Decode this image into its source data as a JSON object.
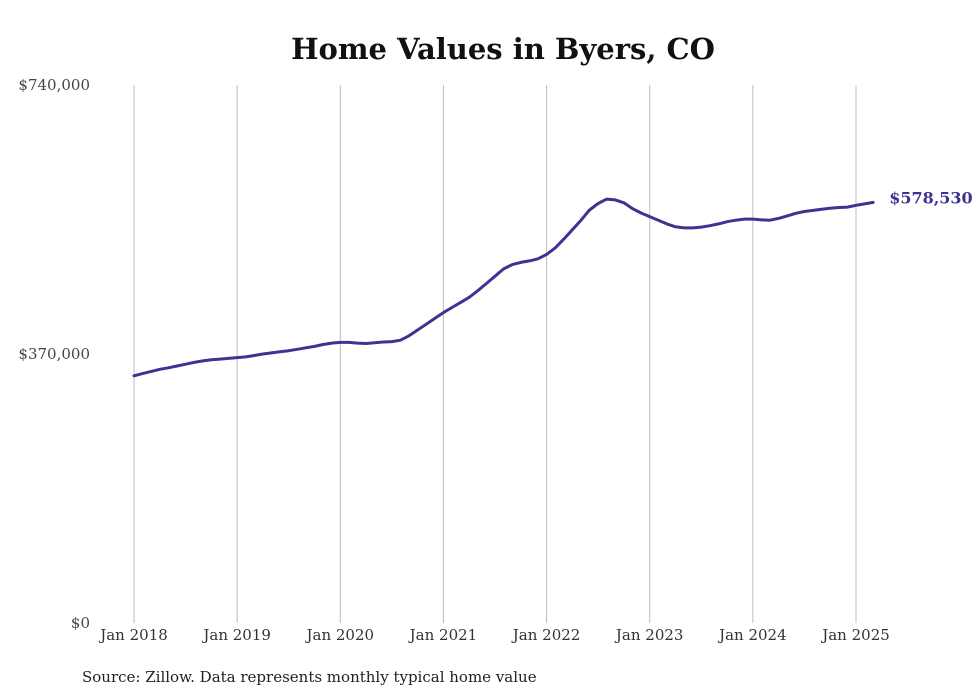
{
  "chart_data": {
    "type": "line",
    "title": "Home Values in Byers, CO",
    "xlabel": "",
    "ylabel": "",
    "y_ticks": [
      {
        "value": 0,
        "label": "$0"
      },
      {
        "value": 370000,
        "label": "$370,000"
      },
      {
        "value": 740000,
        "label": "$740,000"
      }
    ],
    "x_ticks": [
      {
        "value": "2018-01",
        "label": "Jan 2018"
      },
      {
        "value": "2019-01",
        "label": "Jan 2019"
      },
      {
        "value": "2020-01",
        "label": "Jan 2020"
      },
      {
        "value": "2021-01",
        "label": "Jan 2021"
      },
      {
        "value": "2022-01",
        "label": "Jan 2022"
      },
      {
        "value": "2023-01",
        "label": "Jan 2023"
      },
      {
        "value": "2024-01",
        "label": "Jan 2024"
      },
      {
        "value": "2025-01",
        "label": "Jan 2025"
      }
    ],
    "xlim": [
      "2018-01",
      "2025-03"
    ],
    "ylim": [
      0,
      740000
    ],
    "grid": "vertical",
    "legend": "none",
    "series": [
      {
        "color": "#3b3591",
        "end_label": "$578,530",
        "points": [
          [
            "2018-01",
            340000
          ],
          [
            "2018-02",
            343000
          ],
          [
            "2018-03",
            346000
          ],
          [
            "2018-04",
            349000
          ],
          [
            "2018-05",
            351000
          ],
          [
            "2018-06",
            353500
          ],
          [
            "2018-07",
            356000
          ],
          [
            "2018-08",
            358500
          ],
          [
            "2018-09",
            360500
          ],
          [
            "2018-10",
            362000
          ],
          [
            "2018-11",
            363000
          ],
          [
            "2018-12",
            364000
          ],
          [
            "2019-01",
            365000
          ],
          [
            "2019-02",
            366000
          ],
          [
            "2019-03",
            368000
          ],
          [
            "2019-04",
            370000
          ],
          [
            "2019-05",
            371500
          ],
          [
            "2019-06",
            373000
          ],
          [
            "2019-07",
            374500
          ],
          [
            "2019-08",
            376500
          ],
          [
            "2019-09",
            378500
          ],
          [
            "2019-10",
            380500
          ],
          [
            "2019-11",
            383000
          ],
          [
            "2019-12",
            385000
          ],
          [
            "2020-01",
            386000
          ],
          [
            "2020-02",
            386000
          ],
          [
            "2020-03",
            385000
          ],
          [
            "2020-04",
            384500
          ],
          [
            "2020-05",
            385500
          ],
          [
            "2020-06",
            386500
          ],
          [
            "2020-07",
            387000
          ],
          [
            "2020-08",
            389000
          ],
          [
            "2020-09",
            395000
          ],
          [
            "2020-10",
            403000
          ],
          [
            "2020-11",
            411000
          ],
          [
            "2020-12",
            419000
          ],
          [
            "2021-01",
            427000
          ],
          [
            "2021-02",
            434000
          ],
          [
            "2021-03",
            441000
          ],
          [
            "2021-04",
            448000
          ],
          [
            "2021-05",
            457000
          ],
          [
            "2021-06",
            467000
          ],
          [
            "2021-07",
            477000
          ],
          [
            "2021-08",
            487000
          ],
          [
            "2021-09",
            493000
          ],
          [
            "2021-10",
            496000
          ],
          [
            "2021-11",
            498000
          ],
          [
            "2021-12",
            501000
          ],
          [
            "2022-01",
            507000
          ],
          [
            "2022-02",
            516000
          ],
          [
            "2022-03",
            528000
          ],
          [
            "2022-04",
            541000
          ],
          [
            "2022-05",
            554000
          ],
          [
            "2022-06",
            568000
          ],
          [
            "2022-07",
            577000
          ],
          [
            "2022-08",
            583000
          ],
          [
            "2022-09",
            582000
          ],
          [
            "2022-10",
            578000
          ],
          [
            "2022-11",
            570000
          ],
          [
            "2022-12",
            564000
          ],
          [
            "2023-01",
            559000
          ],
          [
            "2023-02",
            554000
          ],
          [
            "2023-03",
            549000
          ],
          [
            "2023-04",
            545000
          ],
          [
            "2023-05",
            543500
          ],
          [
            "2023-06",
            543500
          ],
          [
            "2023-07",
            544500
          ],
          [
            "2023-08",
            546500
          ],
          [
            "2023-09",
            549000
          ],
          [
            "2023-10",
            552000
          ],
          [
            "2023-11",
            554000
          ],
          [
            "2023-12",
            555500
          ],
          [
            "2024-01",
            555500
          ],
          [
            "2024-02",
            554500
          ],
          [
            "2024-03",
            554000
          ],
          [
            "2024-04",
            556500
          ],
          [
            "2024-05",
            560000
          ],
          [
            "2024-06",
            563500
          ],
          [
            "2024-07",
            566000
          ],
          [
            "2024-08",
            567500
          ],
          [
            "2024-09",
            569000
          ],
          [
            "2024-10",
            570500
          ],
          [
            "2024-11",
            571500
          ],
          [
            "2024-12",
            572000
          ],
          [
            "2025-01",
            574500
          ],
          [
            "2025-02",
            576500
          ],
          [
            "2025-03",
            578530
          ]
        ]
      }
    ]
  },
  "footer": {
    "source": "Source: Zillow. Data represents monthly typical home value"
  }
}
